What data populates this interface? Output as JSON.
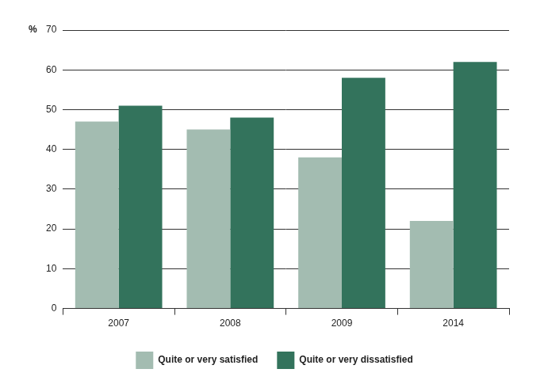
{
  "chart_data": {
    "type": "bar",
    "ylabel": "%",
    "categories": [
      "2007",
      "2008",
      "2009",
      "2014"
    ],
    "series": [
      {
        "name": "Quite or very satisfied",
        "color": "#a3bcb1",
        "values": [
          47,
          45,
          38,
          22
        ]
      },
      {
        "name": "Quite or very dissatisfied",
        "color": "#33735c",
        "values": [
          51,
          48,
          58,
          62
        ]
      }
    ],
    "ylim": [
      0,
      70
    ],
    "yticks": [
      0,
      10,
      20,
      30,
      40,
      50,
      60,
      70
    ],
    "grid": true,
    "legend": "bottom"
  }
}
